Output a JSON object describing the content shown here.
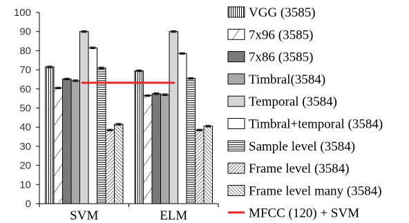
{
  "chart_data": {
    "type": "bar",
    "title": "",
    "xlabel": "",
    "ylabel": "",
    "categories": [
      "SVM",
      "ELM"
    ],
    "ylim": [
      0,
      100
    ],
    "yticks": [
      0,
      10,
      20,
      30,
      40,
      50,
      60,
      70,
      80,
      90,
      100
    ],
    "grid": false,
    "legend_position": "right",
    "series": [
      {
        "name": "VGG (3585)",
        "values": [
          71.5,
          69.5
        ],
        "pattern": "vertical-lines"
      },
      {
        "name": "7x96 (3585)",
        "values": [
          60.5,
          56.5
        ],
        "pattern": "diagonal-sparse"
      },
      {
        "name": "7x86 (3585)",
        "values": [
          65.2,
          57.5
        ],
        "pattern": "solid-dark",
        "color": "#7a7a7a"
      },
      {
        "name": "Timbral(3584)",
        "values": [
          64.3,
          57.0
        ],
        "pattern": "solid-mid",
        "color": "#a8a8a8"
      },
      {
        "name": "Temporal (3584)",
        "values": [
          90.0,
          90.0
        ],
        "pattern": "solid-light",
        "color": "#d6d6d6"
      },
      {
        "name": "Timbral+temporal (3584)",
        "values": [
          81.5,
          78.5
        ],
        "pattern": "solid-white",
        "color": "#ffffff"
      },
      {
        "name": "Sample level (3584)",
        "values": [
          71.0,
          65.5
        ],
        "pattern": "horizontal-lines"
      },
      {
        "name": "Frame level (3584)",
        "values": [
          38.5,
          38.5
        ],
        "pattern": "diagonal-dense"
      },
      {
        "name": "Frame level many (3584)",
        "values": [
          41.5,
          40.5
        ],
        "pattern": "backdiagonal-dense"
      }
    ],
    "reference_line": {
      "name": "MFCC (120) + SVM",
      "value": 63.2,
      "color": "#e8262a"
    }
  }
}
